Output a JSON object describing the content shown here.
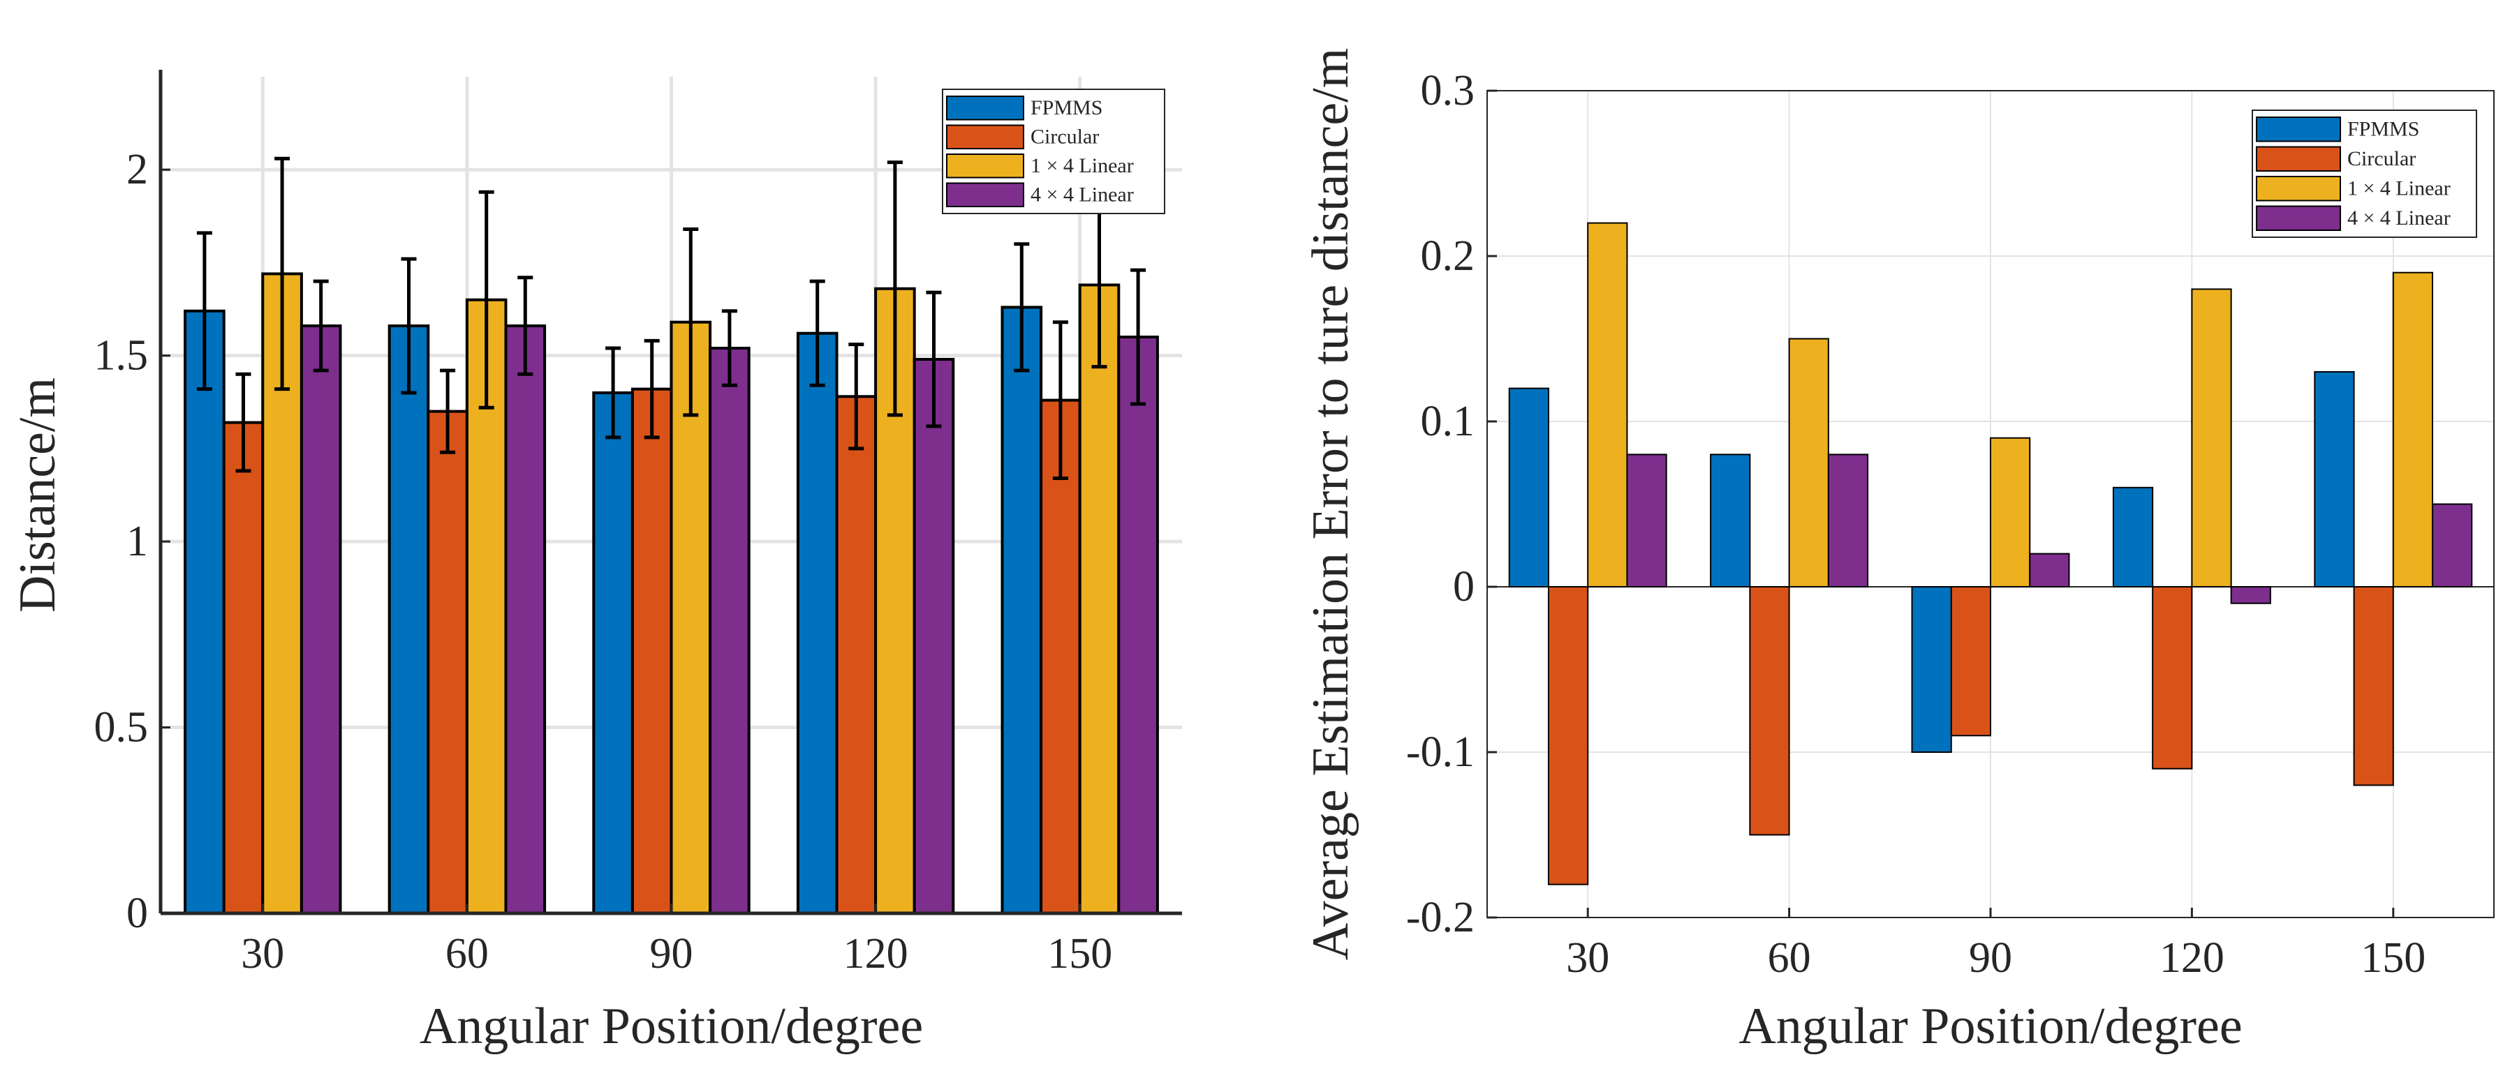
{
  "colors": {
    "series": [
      "#0072BD",
      "#D95319",
      "#EDB120",
      "#7E2F8E"
    ],
    "grid": "#e3e3e3",
    "axis": "#262626"
  },
  "chart_data": [
    {
      "type": "bar",
      "name": "distance-chart",
      "title": "",
      "xlabel": "Angular Position/degree",
      "ylabel": "Distance/m",
      "categories": [
        "30",
        "60",
        "90",
        "120",
        "150"
      ],
      "ylim": [
        0,
        2.25
      ],
      "yticks": [
        0,
        0.5,
        1,
        1.5,
        2
      ],
      "ytick_labels": [
        "0",
        "0.5",
        "1",
        "1.5",
        "2"
      ],
      "grid": true,
      "legend_position": "top-right",
      "error_bars": true,
      "series": [
        {
          "name": "FPMMS",
          "values": [
            1.62,
            1.58,
            1.4,
            1.56,
            1.63
          ],
          "err": [
            0.21,
            0.18,
            0.12,
            0.14,
            0.17
          ]
        },
        {
          "name": "Circular",
          "values": [
            1.32,
            1.35,
            1.41,
            1.39,
            1.38
          ],
          "err": [
            0.13,
            0.11,
            0.13,
            0.14,
            0.21
          ]
        },
        {
          "name": "1 × 4 Linear",
          "values": [
            1.72,
            1.65,
            1.59,
            1.68,
            1.69
          ],
          "err": [
            0.31,
            0.29,
            0.25,
            0.34,
            0.22
          ]
        },
        {
          "name": "4 × 4 Linear",
          "values": [
            1.58,
            1.58,
            1.52,
            1.49,
            1.55
          ],
          "err": [
            0.12,
            0.13,
            0.1,
            0.18,
            0.18
          ]
        }
      ]
    },
    {
      "type": "bar",
      "name": "error-chart",
      "title": "",
      "xlabel": "Angular Position/degree",
      "ylabel": "Average Estimation Error to ture distance/m",
      "categories": [
        "30",
        "60",
        "90",
        "120",
        "150"
      ],
      "ylim": [
        -0.2,
        0.3
      ],
      "yticks": [
        -0.2,
        -0.1,
        0,
        0.1,
        0.2,
        0.3
      ],
      "ytick_labels": [
        "-0.2",
        "-0.1",
        "0",
        "0.1",
        "0.2",
        "0.3"
      ],
      "grid": true,
      "legend_position": "top-right",
      "error_bars": false,
      "series": [
        {
          "name": "FPMMS",
          "values": [
            0.12,
            0.08,
            -0.1,
            0.06,
            0.13
          ]
        },
        {
          "name": "Circular",
          "values": [
            -0.18,
            -0.15,
            -0.09,
            -0.11,
            -0.12
          ]
        },
        {
          "name": "1 × 4 Linear",
          "values": [
            0.22,
            0.15,
            0.09,
            0.18,
            0.19
          ]
        },
        {
          "name": "4 × 4 Linear",
          "values": [
            0.08,
            0.08,
            0.02,
            -0.01,
            0.05
          ]
        }
      ]
    }
  ]
}
